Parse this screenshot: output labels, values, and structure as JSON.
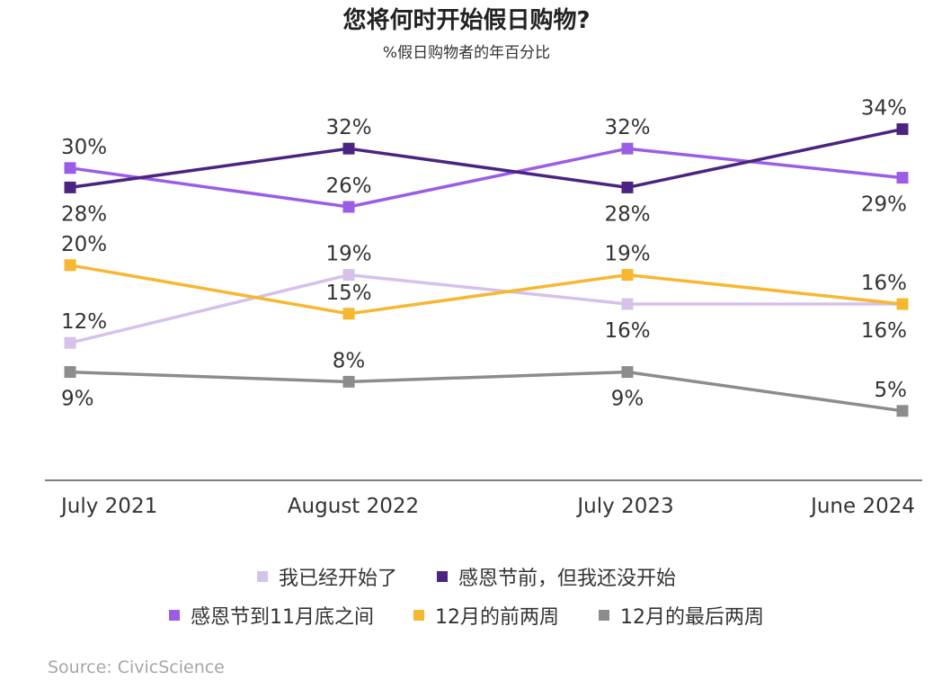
{
  "chart_data": {
    "type": "line",
    "title": "您将何时开始假日购物?",
    "subtitle": "%假日购物者的年百分比",
    "categories": [
      "July 2021",
      "August 2022",
      "July 2023",
      "June 2024"
    ],
    "series": [
      {
        "name": "我已经开始了",
        "color": "#d6c1ea",
        "values": [
          12,
          19,
          16,
          16
        ],
        "value_labels": [
          "12%",
          "19%",
          "16%",
          "16%"
        ],
        "label_pos": [
          "above",
          "above",
          "below",
          "below"
        ]
      },
      {
        "name": "感恩节前，但我还没开始",
        "color": "#4a2480",
        "values": [
          28,
          32,
          28,
          34
        ],
        "value_labels": [
          "28%",
          "32%",
          "28%",
          "34%"
        ],
        "label_pos": [
          "below",
          "above",
          "below",
          "above"
        ]
      },
      {
        "name": "感恩节到11月底之间",
        "color": "#9b5de5",
        "values": [
          30,
          26,
          32,
          29
        ],
        "value_labels": [
          "30%",
          "26%",
          "32%",
          "29%"
        ],
        "label_pos": [
          "above",
          "above",
          "above",
          "below"
        ]
      },
      {
        "name": "12月的前两周",
        "color": "#f7b731",
        "values": [
          20,
          15,
          19,
          16
        ],
        "value_labels": [
          "20%",
          "15%",
          "19%",
          "16%"
        ],
        "label_pos": [
          "above",
          "above",
          "above",
          "above"
        ]
      },
      {
        "name": "12月的最后两周",
        "color": "#8c8c8c",
        "values": [
          9,
          8,
          9,
          5
        ],
        "value_labels": [
          "9%",
          "8%",
          "9%",
          "5%"
        ],
        "label_pos": [
          "below",
          "above",
          "below",
          "above"
        ]
      }
    ],
    "legend_placement": "bottom",
    "grid": false
  },
  "source": "Source: CivicScience"
}
